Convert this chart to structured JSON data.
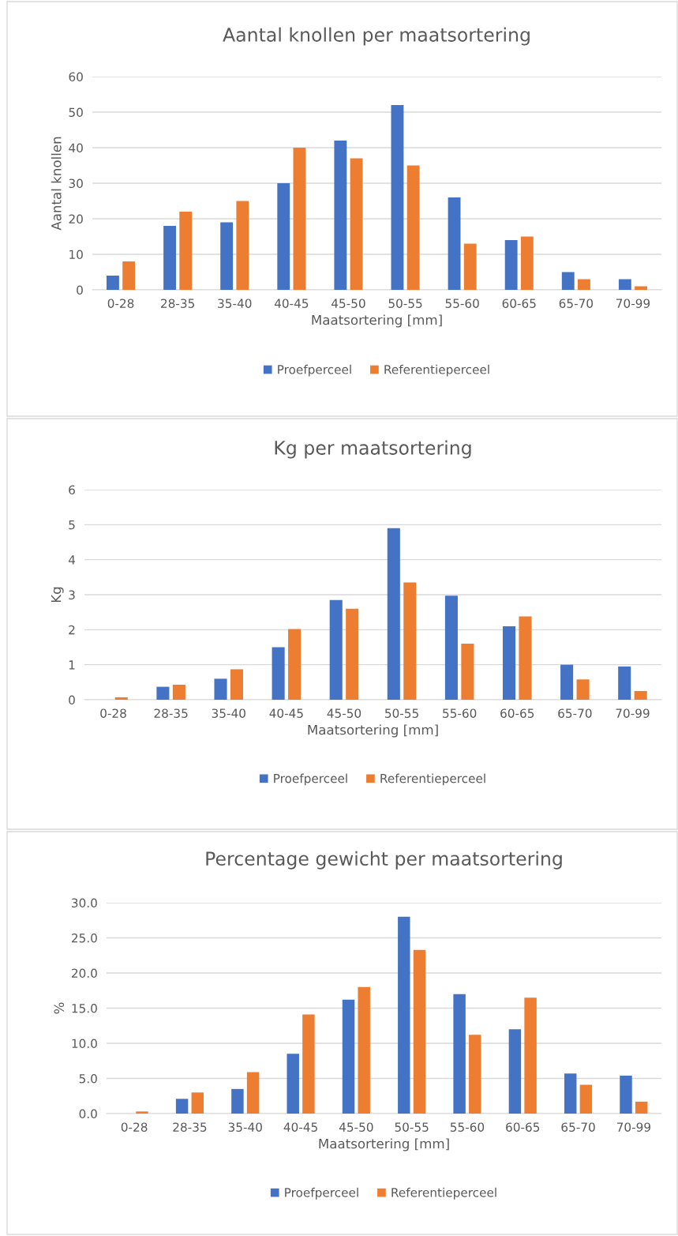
{
  "chart_data": [
    {
      "type": "bar",
      "title": "Aantal knollen per maatsortering",
      "xlabel": "Maatsortering [mm]",
      "ylabel": "Aantal knollen",
      "categories": [
        "0-28",
        "28-35",
        "35-40",
        "40-45",
        "45-50",
        "50-55",
        "55-60",
        "60-65",
        "65-70",
        "70-99"
      ],
      "series": [
        {
          "name": "Proefperceel",
          "color": "#4472c4",
          "values": [
            4,
            18,
            19,
            30,
            42,
            52,
            26,
            14,
            5,
            3
          ]
        },
        {
          "name": "Referentieperceel",
          "color": "#ed7d31",
          "values": [
            8,
            22,
            25,
            40,
            37,
            35,
            13,
            15,
            3,
            1
          ]
        }
      ],
      "ylim": [
        0,
        60
      ],
      "yticks": [
        0,
        10,
        20,
        30,
        40,
        50,
        60
      ],
      "grid": "y",
      "legend": "bottom"
    },
    {
      "type": "bar",
      "title": "Kg per maatsortering",
      "xlabel": "Maatsortering [mm]",
      "ylabel": "Kg",
      "categories": [
        "0-28",
        "28-35",
        "35-40",
        "40-45",
        "45-50",
        "50-55",
        "55-60",
        "60-65",
        "65-70",
        "70-99"
      ],
      "series": [
        {
          "name": "Proefperceel",
          "color": "#4472c4",
          "values": [
            0,
            0.37,
            0.6,
            1.5,
            2.85,
            4.9,
            2.97,
            2.1,
            1.0,
            0.95
          ]
        },
        {
          "name": "Referentieperceel",
          "color": "#ed7d31",
          "values": [
            0.07,
            0.43,
            0.87,
            2.02,
            2.6,
            3.35,
            1.6,
            2.38,
            0.58,
            0.25
          ]
        }
      ],
      "ylim": [
        0,
        6
      ],
      "yticks": [
        0,
        1,
        2,
        3,
        4,
        5,
        6
      ],
      "grid": "y",
      "legend": "bottom"
    },
    {
      "type": "bar",
      "title": "Percentage gewicht per maatsortering",
      "xlabel": "Maatsortering [mm]",
      "ylabel": "%",
      "categories": [
        "0-28",
        "28-35",
        "35-40",
        "40-45",
        "45-50",
        "50-55",
        "55-60",
        "60-65",
        "65-70",
        "70-99"
      ],
      "series": [
        {
          "name": "Proefperceel",
          "color": "#4472c4",
          "values": [
            0,
            2.1,
            3.5,
            8.5,
            16.2,
            28.0,
            17.0,
            12.0,
            5.7,
            5.4
          ]
        },
        {
          "name": "Referentieperceel",
          "color": "#ed7d31",
          "values": [
            0.3,
            3.0,
            5.9,
            14.1,
            18.0,
            23.3,
            11.2,
            16.5,
            4.1,
            1.7
          ]
        }
      ],
      "ylim": [
        0,
        30
      ],
      "yticks": [
        {
          "value": 0,
          "label": "0.0"
        },
        {
          "value": 5,
          "label": "5.0"
        },
        {
          "value": 10,
          "label": "10.0"
        },
        {
          "value": 15,
          "label": "15.0"
        },
        {
          "value": 20,
          "label": "20.0"
        },
        {
          "value": 25,
          "label": "25.0"
        },
        {
          "value": 30,
          "label": "30.0"
        }
      ],
      "grid": "y",
      "legend": "bottom"
    }
  ]
}
